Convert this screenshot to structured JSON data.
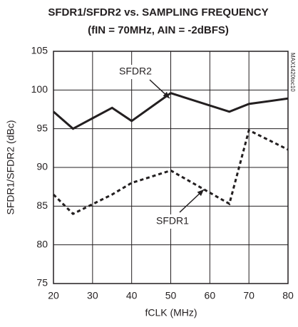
{
  "chart_data": {
    "type": "line",
    "title": "SFDR1/SFDR2 vs. SAMPLING FREQUENCY",
    "subtitle": "(fIN = 70MHz, AIN = -2dBFS)",
    "x_label": "fCLK (MHz)",
    "y_label": "SFDR1/SFDR2 (dBc)",
    "watermark": "MAX1420toc10",
    "x": [
      20,
      25,
      35,
      40,
      50,
      65,
      70,
      80
    ],
    "series": [
      {
        "name": "SFDR2",
        "color": "#231f20",
        "style": "solid",
        "values": [
          97.2,
          95.0,
          97.7,
          96.0,
          99.6,
          97.2,
          98.2,
          98.9
        ]
      },
      {
        "name": "SFDR1",
        "color": "#231f20",
        "style": "dashed",
        "values": [
          86.5,
          84.0,
          86.5,
          88.0,
          89.6,
          85.3,
          94.8,
          92.3
        ]
      }
    ],
    "xlim": [
      20,
      80
    ],
    "xticks": [
      20,
      30,
      40,
      50,
      60,
      70,
      80
    ],
    "ylim": [
      75,
      105
    ],
    "yticks": [
      75,
      80,
      85,
      90,
      95,
      100,
      105
    ],
    "grid": true
  }
}
